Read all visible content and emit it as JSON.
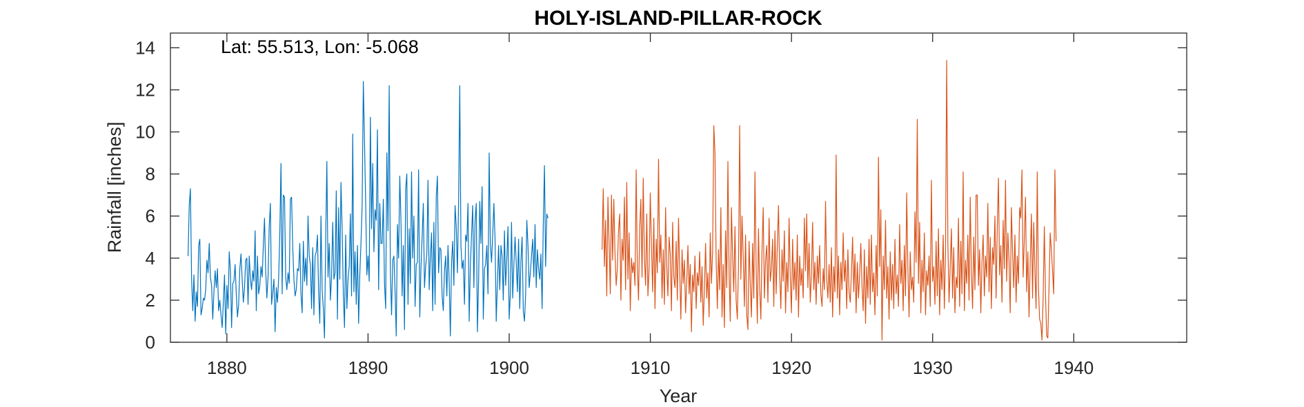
{
  "chart_data": {
    "type": "line",
    "title": "HOLY-ISLAND-PILLAR-ROCK",
    "xlabel": "Year",
    "ylabel": "Rainfall [inches]",
    "annotation": "Lat: 55.513, Lon: -5.068",
    "xlim": [
      1876,
      1948
    ],
    "ylim": [
      0,
      14.7
    ],
    "xticks": [
      1880,
      1890,
      1900,
      1910,
      1920,
      1930,
      1940
    ],
    "yticks": [
      0,
      2,
      4,
      6,
      8,
      10,
      12,
      14
    ],
    "grid": false,
    "legend": "none",
    "series": [
      {
        "color": "#0072BD",
        "x_start": 1877.25,
        "x_step": 0.08333,
        "values": [
          4.1,
          6.5,
          7.3,
          3.0,
          1.5,
          3.2,
          1.0,
          2.4,
          1.7,
          4.6,
          4.9,
          1.3,
          1.6,
          2.1,
          2.0,
          2.5,
          3.9,
          3.3,
          4.7,
          3.1,
          2.7,
          1.1,
          2.4,
          3.4,
          2.6,
          3.5,
          1.5,
          2.0,
          1.3,
          0.7,
          1.9,
          3.2,
          0.4,
          2.7,
          1.6,
          4.3,
          3.4,
          0.7,
          2.8,
          2.9,
          3.7,
          2.3,
          1.2,
          1.8,
          3.5,
          4.2,
          3.0,
          1.9,
          2.6,
          3.9,
          4.0,
          1.8,
          4.1,
          3.0,
          2.5,
          3.4,
          2.9,
          5.3,
          1.5,
          4.1,
          2.3,
          2.7,
          3.6,
          3.1,
          4.6,
          5.9,
          3.4,
          2.1,
          3.1,
          5.5,
          6.6,
          1.8,
          2.4,
          3.0,
          0.5,
          2.6,
          1.9,
          3.0,
          5.2,
          8.5,
          2.3,
          7.0,
          6.9,
          3.1,
          2.5,
          3.3,
          2.8,
          6.8,
          6.9,
          4.5,
          3.0,
          2.2,
          2.5,
          3.5,
          3.4,
          4.7,
          2.3,
          1.4,
          4.8,
          2.9,
          4.0,
          2.7,
          6.0,
          4.1,
          3.7,
          1.6,
          4.5,
          1.3,
          4.1,
          4.3,
          5.1,
          2.4,
          0.9,
          6.0,
          2.5,
          1.6,
          0.2,
          4.8,
          8.6,
          3.1,
          4.7,
          2.0,
          3.1,
          5.7,
          3.0,
          3.3,
          7.2,
          1.1,
          6.4,
          3.0,
          7.6,
          5.4,
          2.3,
          0.7,
          5.1,
          1.6,
          3.0,
          3.6,
          6.1,
          2.2,
          9.9,
          2.4,
          4.3,
          1.8,
          4.6,
          0.9,
          3.2,
          4.7,
          6.5,
          12.4,
          9.6,
          6.6,
          3.2,
          4.1,
          2.9,
          10.7,
          5.4,
          8.5,
          4.3,
          6.3,
          5.8,
          10.1,
          2.5,
          6.6,
          4.7,
          4.7,
          6.8,
          2.8,
          1.6,
          9.0,
          5.3,
          12.2,
          3.4,
          1.3,
          3.9,
          4.1,
          2.4,
          0.3,
          5.6,
          4.0,
          7.9,
          5.8,
          2.2,
          4.6,
          0.6,
          7.3,
          8.0,
          1.8,
          5.4,
          2.8,
          8.1,
          4.0,
          6.0,
          1.7,
          3.7,
          3.8,
          8.2,
          1.2,
          3.5,
          5.0,
          6.6,
          2.6,
          3.6,
          4.2,
          7.7,
          2.5,
          4.0,
          5.2,
          1.5,
          5.7,
          1.8,
          6.9,
          7.9,
          3.3,
          4.5,
          4.4,
          2.2,
          1.5,
          3.4,
          4.1,
          2.2,
          4.6,
          2.9,
          0.3,
          3.8,
          4.8,
          2.7,
          6.5,
          5.5,
          3.3,
          6.7,
          12.2,
          4.6,
          3.5,
          3.9,
          1.8,
          5.1,
          4.8,
          6.6,
          1.0,
          3.6,
          5.1,
          6.5,
          2.6,
          5.8,
          6.6,
          0.5,
          2.9,
          6.7,
          4.7,
          7.4,
          1.1,
          3.5,
          3.7,
          4.6,
          2.3,
          9.0,
          4.7,
          3.8,
          5.1,
          6.6,
          4.9,
          1.0,
          2.8,
          4.6,
          2.5,
          4.6,
          4.1,
          2.0,
          5.3,
          2.7,
          4.0,
          5.5,
          1.1,
          2.3,
          5.7,
          2.1,
          3.7,
          5.0,
          3.8,
          2.4,
          4.9,
          1.6,
          3.9,
          5.0,
          1.5,
          1.0,
          2.3,
          5.8,
          4.6,
          2.6,
          3.3,
          4.1,
          4.9,
          3.1,
          5.6,
          2.6,
          4.4,
          3.5,
          3.0,
          4.2,
          1.6,
          5.6,
          8.4,
          3.6,
          6.1,
          5.9
        ]
      },
      {
        "color": "#D95319",
        "x_start": 1906.58,
        "x_step": 0.08333,
        "values": [
          4.4,
          7.3,
          3.6,
          5.8,
          2.2,
          6.9,
          4.7,
          2.3,
          7.0,
          3.9,
          6.8,
          4.2,
          2.7,
          3.5,
          5.3,
          6.1,
          2.0,
          4.9,
          3.9,
          6.9,
          2.5,
          7.6,
          3.0,
          5.2,
          1.5,
          4.0,
          3.3,
          3.8,
          2.7,
          8.2,
          3.6,
          2.0,
          5.4,
          6.8,
          3.1,
          7.8,
          4.0,
          2.7,
          6.1,
          2.2,
          3.5,
          7.1,
          4.6,
          2.4,
          5.9,
          1.6,
          4.9,
          3.3,
          8.7,
          3.8,
          5.1,
          2.1,
          4.4,
          1.8,
          6.4,
          3.6,
          2.2,
          5.0,
          4.2,
          1.5,
          5.7,
          3.1,
          2.6,
          4.8,
          2.0,
          5.9,
          3.4,
          1.1,
          4.4,
          2.8,
          3.9,
          1.4,
          2.9,
          4.6,
          2.3,
          3.7,
          0.5,
          3.2,
          2.4,
          4.1,
          1.6,
          3.3,
          2.7,
          4.3,
          1.9,
          3.6,
          0.8,
          2.5,
          4.7,
          2.1,
          3.3,
          1.2,
          5.2,
          2.8,
          4.3,
          10.3,
          9.0,
          3.9,
          1.6,
          4.4,
          2.5,
          6.4,
          1.2,
          3.7,
          0.7,
          5.3,
          2.6,
          8.6,
          3.3,
          1.0,
          6.4,
          4.1,
          2.4,
          5.5,
          2.0,
          1.1,
          3.6,
          10.3,
          3.0,
          6.0,
          4.1,
          1.7,
          5.1,
          1.3,
          0.6,
          4.8,
          2.8,
          1.2,
          4.7,
          2.1,
          8.1,
          3.6,
          0.9,
          5.4,
          2.6,
          1.1,
          4.4,
          6.4,
          2.1,
          3.9,
          4.6,
          1.9,
          5.9,
          2.9,
          3.5,
          4.9,
          1.7,
          5.3,
          2.3,
          4.6,
          6.5,
          3.3,
          1.6,
          4.4,
          2.9,
          5.3,
          1.4,
          3.8,
          2.4,
          5.9,
          3.1,
          1.4,
          4.9,
          2.5,
          3.8,
          2.0,
          5.1,
          1.2,
          4.1,
          2.7,
          3.5,
          2.1,
          5.9,
          3.4,
          6.1,
          2.6,
          4.7,
          1.9,
          3.2,
          5.7,
          2.5,
          3.8,
          1.8,
          4.1,
          2.8,
          4.6,
          2.3,
          1.7,
          3.5,
          2.5,
          6.7,
          3.0,
          2.1,
          3.7,
          1.9,
          4.5,
          1.2,
          3.6,
          2.4,
          8.9,
          2.1,
          4.1,
          1.3,
          3.8,
          2.5,
          5.2,
          2.9,
          3.9,
          1.6,
          4.4,
          2.4,
          1.9,
          3.3,
          5.0,
          2.4,
          4.2,
          1.4,
          3.8,
          2.1,
          3.2,
          4.7,
          2.7,
          1.5,
          4.4,
          0.9,
          3.6,
          2.1,
          4.9,
          1.8,
          5.1,
          2.4,
          3.3,
          1.3,
          4.6,
          2.2,
          8.8,
          3.6,
          6.3,
          0.1,
          4.1,
          2.5,
          5.8,
          2.1,
          3.6,
          1.1,
          4.3,
          2.0,
          3.7,
          1.6,
          4.9,
          2.3,
          3.2,
          1.7,
          5.6,
          2.8,
          3.9,
          1.5,
          4.6,
          2.2,
          7.1,
          3.5,
          1.2,
          4.3,
          2.5,
          3.1,
          1.9,
          6.2,
          3.8,
          10.6,
          2.8,
          5.7,
          1.4,
          3.9,
          2.4,
          5.2,
          1.3,
          3.4,
          2.7,
          4.1,
          1.7,
          7.7,
          2.9,
          3.6,
          1.8,
          4.8,
          2.2,
          5.4,
          1.3,
          3.9,
          2.5,
          5.1,
          1.6,
          4.3,
          13.4,
          4.7,
          1.9,
          3.6,
          5.4,
          2.1,
          4.5,
          1.4,
          3.1,
          2.6,
          5.9,
          1.7,
          4.8,
          2.3,
          8.1,
          1.5,
          3.9,
          2.8,
          5.1,
          2.0,
          6.9,
          3.3,
          1.6,
          5.0,
          2.5,
          7.0,
          7.0,
          2.7,
          4.4,
          1.4,
          3.8,
          5.1,
          2.2,
          4.1,
          3.1,
          6.6,
          2.4,
          5.0,
          1.6,
          4.5,
          3.7,
          6.0,
          2.1,
          5.5,
          7.8,
          3.2,
          4.6,
          1.9,
          5.8,
          3.5,
          7.7,
          2.9,
          5.2,
          3.9,
          1.4,
          6.4,
          4.3,
          2.6,
          5.1,
          1.9,
          4.1,
          2.8,
          6.4,
          5.9,
          8.2,
          3.1,
          4.9,
          6.9,
          2.4,
          4.3,
          1.2,
          3.8,
          6.1,
          2.1,
          5.7,
          3.4,
          1.6,
          8.1,
          2.6,
          1.1,
          0.9,
          0.1,
          2.1,
          5.5,
          2.3,
          0.3,
          0.2,
          2.6,
          5.2,
          4.4,
          3.4,
          2.3,
          8.2,
          4.8
        ]
      }
    ]
  }
}
